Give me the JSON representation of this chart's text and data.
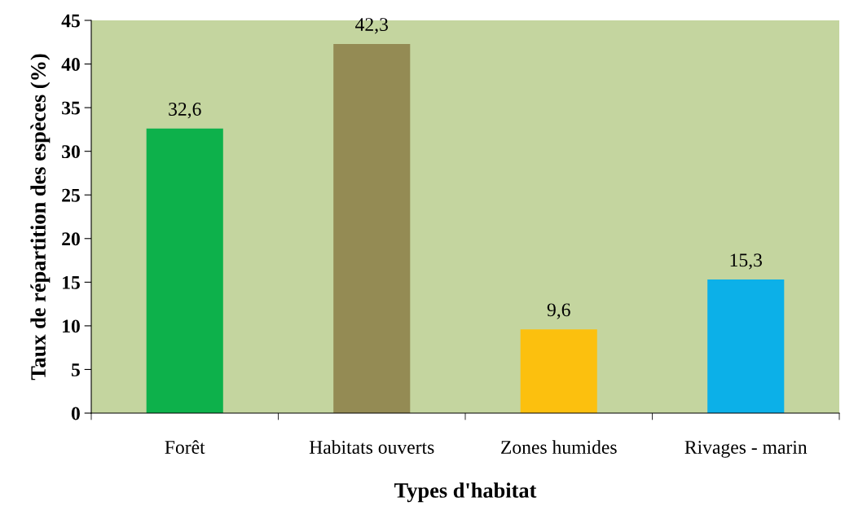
{
  "chart_data": {
    "type": "bar",
    "xlabel": "Types d'habitat",
    "ylabel": "Taux de répartition des espèces (%)",
    "categories": [
      "Forêt",
      "Habitats ouverts",
      "Zones humides",
      "Rivages - marin"
    ],
    "values": [
      32.6,
      42.3,
      9.6,
      15.3
    ],
    "value_labels": [
      "32,6",
      "42,3",
      "9,6",
      "15,3"
    ],
    "colors": [
      "#0db14b",
      "#948b54",
      "#fcc00e",
      "#0cb0e8"
    ],
    "ylim": [
      0,
      45
    ],
    "yticks": [
      0,
      5,
      10,
      15,
      20,
      25,
      30,
      35,
      40,
      45
    ],
    "grid": false,
    "legend": false
  }
}
